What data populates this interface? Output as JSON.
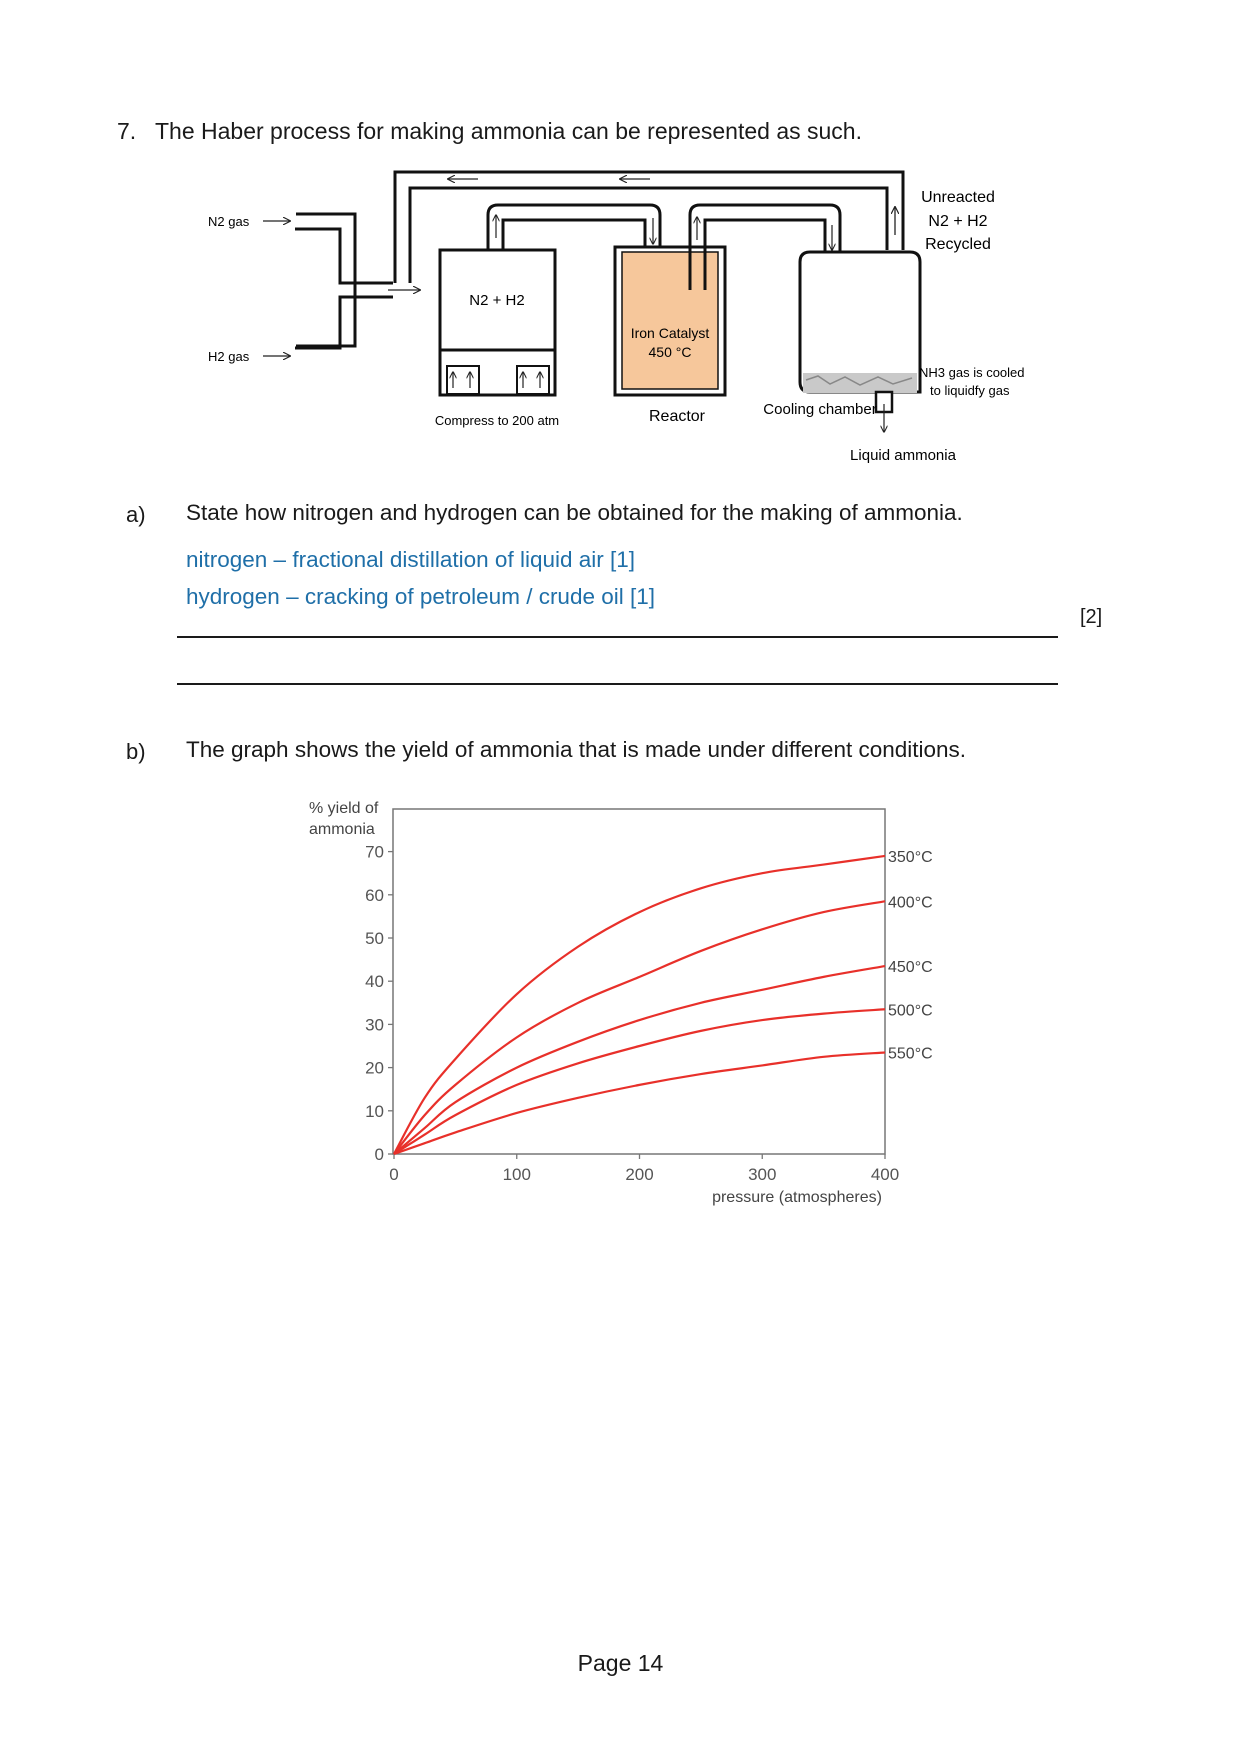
{
  "question": {
    "number": "7.",
    "text": "The Haber process for making ammonia can be represented as such."
  },
  "diagram": {
    "n2_gas": "N2 gas",
    "h2_gas": "H2 gas",
    "mixer_label": "N2 + H2",
    "compress_label": "Compress to 200 atm",
    "catalyst_label": "Iron Catalyst",
    "catalyst_temp": "450 °C",
    "reactor_label": "Reactor",
    "unreacted_line1": "Unreacted",
    "unreacted_line2": "N2 + H2",
    "unreacted_line3": "Recycled",
    "nh3_line1": "NH3 gas is cooled",
    "nh3_line2": "to liquidfy gas",
    "cooling_label": "Cooling chamber",
    "liquid_label": "Liquid ammonia"
  },
  "part_a": {
    "label": "a)",
    "prompt": "State how nitrogen and hydrogen can be obtained for the making of ammonia.",
    "answer_line1": "nitrogen – fractional distillation of liquid air [1]",
    "answer_line2": "hydrogen – cracking of petroleum / crude oil [1]",
    "marks": "[2]"
  },
  "part_b": {
    "label": "b)",
    "prompt": "The graph shows the yield of ammonia that is made under different conditions."
  },
  "chart_data": {
    "type": "line",
    "title": "",
    "ylabel_line1": "% yield of",
    "ylabel_line2": "ammonia",
    "xlabel": "pressure (atmospheres)",
    "xlim": [
      0,
      400
    ],
    "ylim": [
      0,
      80
    ],
    "x_ticks": [
      "0",
      "100",
      "200",
      "300",
      "400"
    ],
    "y_ticks": [
      "0",
      "10",
      "20",
      "30",
      "40",
      "50",
      "60",
      "70"
    ],
    "grid": false,
    "line_color": "#e8302a",
    "series": [
      {
        "name": "350°C",
        "x": [
          0,
          25,
          50,
          100,
          150,
          200,
          250,
          300,
          350,
          400
        ],
        "values": [
          0,
          13,
          22,
          37,
          48,
          56,
          61.5,
          65,
          67,
          69
        ]
      },
      {
        "name": "400°C",
        "x": [
          0,
          25,
          50,
          100,
          150,
          200,
          250,
          300,
          350,
          400
        ],
        "values": [
          0,
          9,
          16,
          27,
          35,
          41,
          47,
          52,
          56,
          58.5
        ]
      },
      {
        "name": "450°C",
        "x": [
          0,
          25,
          50,
          100,
          150,
          200,
          250,
          300,
          350,
          400
        ],
        "values": [
          0,
          6,
          12,
          20,
          26,
          31,
          35,
          38,
          41,
          43.5
        ]
      },
      {
        "name": "500°C",
        "x": [
          0,
          25,
          50,
          100,
          150,
          200,
          250,
          300,
          350,
          400
        ],
        "values": [
          0,
          4.5,
          9,
          16,
          21,
          25,
          28.5,
          31,
          32.5,
          33.5
        ]
      },
      {
        "name": "550°C",
        "x": [
          0,
          25,
          50,
          100,
          150,
          200,
          250,
          300,
          350,
          400
        ],
        "values": [
          0,
          2.5,
          5,
          9.5,
          13,
          16,
          18.5,
          20.5,
          22.5,
          23.5
        ]
      }
    ]
  },
  "footer": {
    "page": "Page 14"
  }
}
